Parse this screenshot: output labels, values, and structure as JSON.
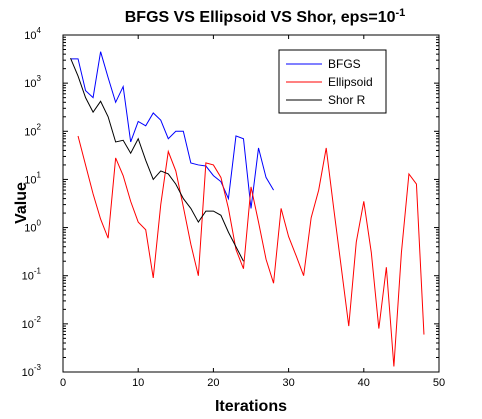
{
  "chart_data": {
    "type": "line",
    "title_main": "BFGS VS Ellipsoid VS Shor, eps=10",
    "title_exp": "-1",
    "xlabel": "Iterations",
    "ylabel": "Value",
    "xlim": [
      0,
      50
    ],
    "ylim": [
      0.001,
      10000
    ],
    "yscale": "log",
    "grid": false,
    "legend_position": "top-right",
    "x_ticks": [
      0,
      10,
      20,
      30,
      40,
      50
    ],
    "x_tick_labels": [
      "0",
      "10",
      "20",
      "30",
      "40",
      "50"
    ],
    "y_ticks": [
      0.001,
      0.01,
      0.1,
      1,
      10,
      100,
      1000,
      10000
    ],
    "y_tick_labels": [
      {
        "base": "10",
        "exp": "-3"
      },
      {
        "base": "10",
        "exp": "-2"
      },
      {
        "base": "10",
        "exp": "-1"
      },
      {
        "base": "10",
        "exp": "0"
      },
      {
        "base": "10",
        "exp": "1"
      },
      {
        "base": "10",
        "exp": "2"
      },
      {
        "base": "10",
        "exp": "3"
      },
      {
        "base": "10",
        "exp": "4"
      }
    ],
    "series": [
      {
        "name": "BFGS",
        "color": "#0000ff",
        "x": [
          1,
          2,
          3,
          4,
          5,
          6,
          7,
          8,
          9,
          10,
          11,
          12,
          13,
          14,
          15,
          16,
          17,
          18,
          19,
          20,
          21,
          22,
          23,
          24,
          25,
          26,
          27,
          28
        ],
        "y": [
          3200,
          3200,
          700,
          500,
          4500,
          1300,
          400,
          850,
          60,
          160,
          130,
          240,
          170,
          70,
          100,
          100,
          22,
          20,
          19,
          12,
          9,
          4,
          80,
          70,
          2.5,
          45,
          11,
          6
        ]
      },
      {
        "name": "Ellipsoid",
        "color": "#ff0000",
        "x": [
          2,
          3,
          4,
          5,
          6,
          7,
          8,
          9,
          10,
          11,
          12,
          13,
          14,
          15,
          16,
          17,
          18,
          19,
          20,
          21,
          22,
          23,
          24,
          25,
          26,
          27,
          28,
          29,
          30,
          31,
          32,
          33,
          34,
          35,
          36,
          37,
          38,
          39,
          40,
          41,
          42,
          43,
          44,
          45,
          46,
          47,
          48
        ],
        "y": [
          80,
          20,
          5,
          1.5,
          0.6,
          28,
          12,
          3.5,
          1.3,
          0.9,
          0.09,
          3,
          38,
          15,
          2.7,
          0.45,
          0.1,
          22,
          20,
          11,
          2.5,
          0.35,
          0.14,
          7,
          1.3,
          0.22,
          0.07,
          2.5,
          0.65,
          0.26,
          0.1,
          1.6,
          6,
          45,
          2.5,
          0.15,
          0.009,
          0.5,
          3.5,
          0.3,
          0.008,
          0.15,
          0.0013,
          0.3,
          13,
          8,
          0.006
        ]
      },
      {
        "name": "Shor R",
        "color": "#000000",
        "x": [
          1,
          2,
          3,
          4,
          5,
          6,
          7,
          8,
          9,
          10,
          11,
          12,
          13,
          14,
          15,
          16,
          17,
          18,
          19,
          20,
          21,
          22,
          23,
          24
        ],
        "y": [
          3300,
          1400,
          500,
          250,
          420,
          200,
          60,
          65,
          35,
          70,
          25,
          10,
          15,
          13,
          8,
          4,
          2.5,
          1.3,
          2.2,
          2.2,
          1.8,
          0.8,
          0.4,
          0.2
        ]
      }
    ]
  }
}
